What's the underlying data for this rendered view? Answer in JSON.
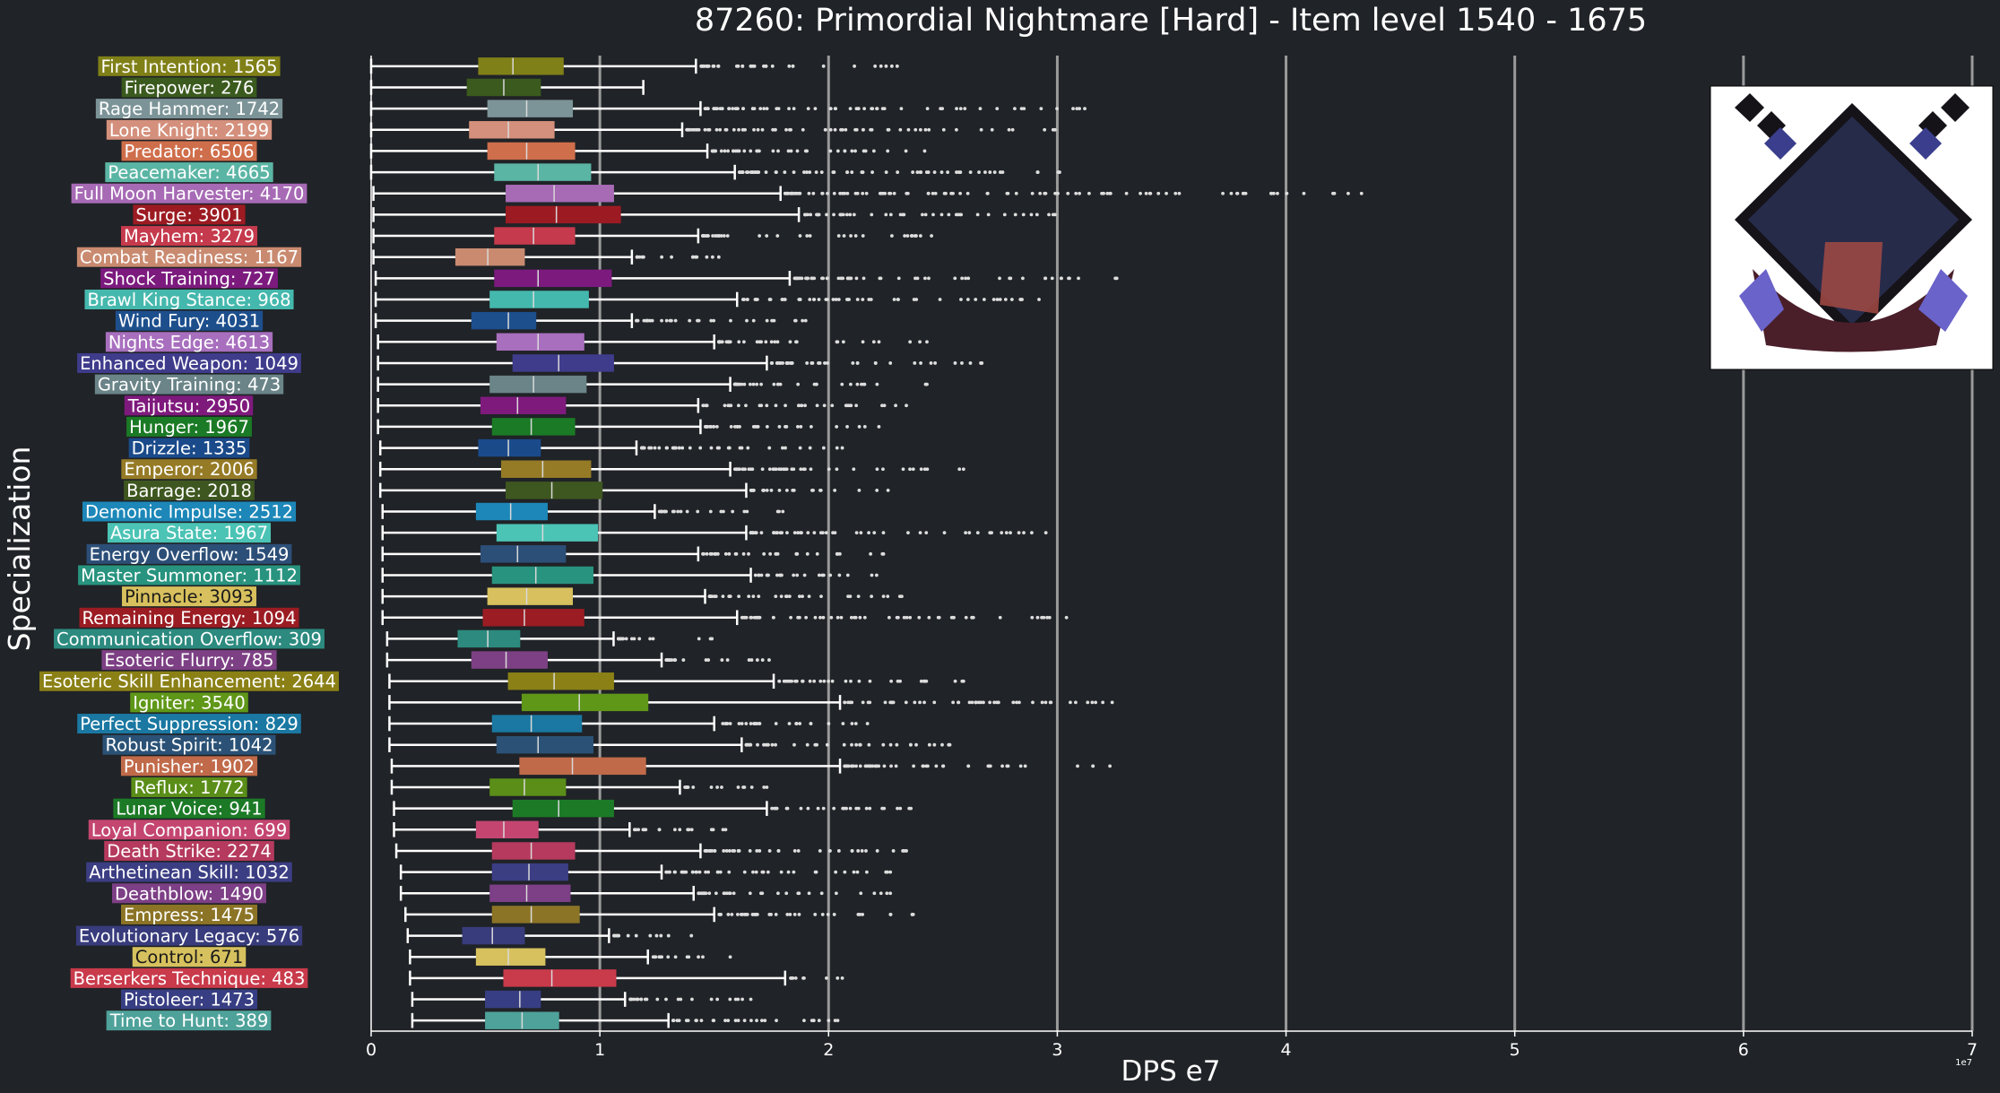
{
  "chart_data": {
    "type": "box",
    "orientation": "horizontal",
    "title": "87260: Primordial Nightmare [Hard] - Item level 1540 - 1675",
    "xlabel": "DPS e7",
    "ylabel": "Specialization",
    "offset_label": "1e7",
    "xlim": [
      0,
      7
    ],
    "xticks": [
      "0",
      "1",
      "2",
      "3",
      "4",
      "5",
      "6",
      "7"
    ],
    "grid": "vertical major lines",
    "thumbnail": "boss-portrait-icon",
    "categories": [
      {
        "label": "First Intention: 1565",
        "color": "#808018",
        "wmin": 0.0,
        "q1": 0.47,
        "med": 0.62,
        "q3": 0.84,
        "wmax": 1.42,
        "fmax": 2.3
      },
      {
        "label": "Firepower: 276",
        "color": "#3b5a1e",
        "wmin": 0.0,
        "q1": 0.42,
        "med": 0.58,
        "q3": 0.74,
        "wmax": 1.19,
        "fmax": 1.19
      },
      {
        "label": "Rage Hammer: 1742",
        "color": "#7c9498",
        "wmin": 0.0,
        "q1": 0.51,
        "med": 0.68,
        "q3": 0.88,
        "wmax": 1.44,
        "fmax": 3.12
      },
      {
        "label": "Lone Knight: 2199",
        "color": "#d4907c",
        "wmin": 0.0,
        "q1": 0.43,
        "med": 0.6,
        "q3": 0.8,
        "wmax": 1.36,
        "fmax": 2.99
      },
      {
        "label": "Predator: 6506",
        "color": "#cf6e4b",
        "wmin": 0.0,
        "q1": 0.51,
        "med": 0.68,
        "q3": 0.89,
        "wmax": 1.47,
        "fmax": 2.42
      },
      {
        "label": "Peacemaker: 4665",
        "color": "#5bb5a4",
        "wmin": 0.0,
        "q1": 0.54,
        "med": 0.73,
        "q3": 0.96,
        "wmax": 1.59,
        "fmax": 3.01
      },
      {
        "label": "Full Moon Harvester: 4170",
        "color": "#a76ab5",
        "wmin": 0.01,
        "q1": 0.59,
        "med": 0.8,
        "q3": 1.06,
        "wmax": 1.79,
        "fmax": 4.33
      },
      {
        "label": "Surge: 3901",
        "color": "#9c1b22",
        "wmin": 0.01,
        "q1": 0.59,
        "med": 0.81,
        "q3": 1.09,
        "wmax": 1.87,
        "fmax": 2.99
      },
      {
        "label": "Mayhem: 3279",
        "color": "#c53a4c",
        "wmin": 0.01,
        "q1": 0.54,
        "med": 0.71,
        "q3": 0.89,
        "wmax": 1.43,
        "fmax": 2.45
      },
      {
        "label": "Combat Readiness: 1167",
        "color": "#c98a70",
        "wmin": 0.01,
        "q1": 0.37,
        "med": 0.51,
        "q3": 0.67,
        "wmax": 1.14,
        "fmax": 1.52
      },
      {
        "label": "Shock Training: 727",
        "color": "#7c1a7e",
        "wmin": 0.02,
        "q1": 0.54,
        "med": 0.73,
        "q3": 1.05,
        "wmax": 1.83,
        "fmax": 3.26
      },
      {
        "label": "Brawl King Stance: 968",
        "color": "#45b8ad",
        "wmin": 0.02,
        "q1": 0.52,
        "med": 0.71,
        "q3": 0.95,
        "wmax": 1.6,
        "fmax": 2.92
      },
      {
        "label": "Wind Fury: 4031",
        "color": "#1d4f8d",
        "wmin": 0.02,
        "q1": 0.44,
        "med": 0.6,
        "q3": 0.72,
        "wmax": 1.14,
        "fmax": 1.9
      },
      {
        "label": "Nights Edge: 4613",
        "color": "#a86fbe",
        "wmin": 0.03,
        "q1": 0.55,
        "med": 0.73,
        "q3": 0.93,
        "wmax": 1.5,
        "fmax": 2.43
      },
      {
        "label": "Enhanced Weapon: 1049",
        "color": "#3f3c8c",
        "wmin": 0.03,
        "q1": 0.62,
        "med": 0.82,
        "q3": 1.06,
        "wmax": 1.73,
        "fmax": 2.67
      },
      {
        "label": "Gravity Training: 473",
        "color": "#6a8488",
        "wmin": 0.03,
        "q1": 0.52,
        "med": 0.71,
        "q3": 0.94,
        "wmax": 1.57,
        "fmax": 2.43
      },
      {
        "label": "Taijutsu: 2950",
        "color": "#7f1a7d",
        "wmin": 0.03,
        "q1": 0.48,
        "med": 0.64,
        "q3": 0.85,
        "wmax": 1.43,
        "fmax": 2.34
      },
      {
        "label": "Hunger: 1967",
        "color": "#1b7a25",
        "wmin": 0.03,
        "q1": 0.53,
        "med": 0.7,
        "q3": 0.89,
        "wmax": 1.44,
        "fmax": 2.22
      },
      {
        "label": "Drizzle: 1335",
        "color": "#1a4a8a",
        "wmin": 0.04,
        "q1": 0.47,
        "med": 0.6,
        "q3": 0.74,
        "wmax": 1.16,
        "fmax": 2.06
      },
      {
        "label": "Emperor: 2006",
        "color": "#967b26",
        "wmin": 0.04,
        "q1": 0.57,
        "med": 0.75,
        "q3": 0.96,
        "wmax": 1.57,
        "fmax": 2.59
      },
      {
        "label": "Barrage: 2018",
        "color": "#3e5720",
        "wmin": 0.04,
        "q1": 0.59,
        "med": 0.79,
        "q3": 1.01,
        "wmax": 1.64,
        "fmax": 2.26
      },
      {
        "label": "Demonic Impulse: 2512",
        "color": "#1c87b8",
        "wmin": 0.05,
        "q1": 0.46,
        "med": 0.61,
        "q3": 0.77,
        "wmax": 1.24,
        "fmax": 1.8
      },
      {
        "label": "Asura State: 1967",
        "color": "#4bc3b5",
        "wmin": 0.05,
        "q1": 0.55,
        "med": 0.75,
        "q3": 0.99,
        "wmax": 1.64,
        "fmax": 2.95
      },
      {
        "label": "Energy Overflow: 1549",
        "color": "#2c4f78",
        "wmin": 0.05,
        "q1": 0.48,
        "med": 0.64,
        "q3": 0.85,
        "wmax": 1.43,
        "fmax": 2.24
      },
      {
        "label": "Master Summoner: 1112",
        "color": "#28937e",
        "wmin": 0.05,
        "q1": 0.53,
        "med": 0.72,
        "q3": 0.97,
        "wmax": 1.66,
        "fmax": 2.21
      },
      {
        "label": "Pinnacle: 3093",
        "color": "#d7c05d",
        "wmin": 0.05,
        "q1": 0.51,
        "med": 0.68,
        "q3": 0.88,
        "wmax": 1.46,
        "fmax": 2.32
      },
      {
        "label": "Remaining Energy: 1094",
        "color": "#9b1c23",
        "wmin": 0.05,
        "q1": 0.49,
        "med": 0.67,
        "q3": 0.93,
        "wmax": 1.6,
        "fmax": 3.04
      },
      {
        "label": "Communication Overflow: 309",
        "color": "#2c8a7f",
        "wmin": 0.07,
        "q1": 0.38,
        "med": 0.51,
        "q3": 0.65,
        "wmax": 1.06,
        "fmax": 1.49
      },
      {
        "label": "Esoteric Flurry: 785",
        "color": "#7d4084",
        "wmin": 0.07,
        "q1": 0.44,
        "med": 0.59,
        "q3": 0.77,
        "wmax": 1.27,
        "fmax": 1.74
      },
      {
        "label": "Esoteric Skill Enhancement: 2644",
        "color": "#8a8016",
        "wmin": 0.08,
        "q1": 0.6,
        "med": 0.8,
        "q3": 1.06,
        "wmax": 1.76,
        "fmax": 2.59
      },
      {
        "label": "Igniter: 3540",
        "color": "#5f9718",
        "wmin": 0.08,
        "q1": 0.66,
        "med": 0.91,
        "q3": 1.21,
        "wmax": 2.05,
        "fmax": 3.24
      },
      {
        "label": "Perfect Suppression: 829",
        "color": "#1a78a2",
        "wmin": 0.08,
        "q1": 0.53,
        "med": 0.7,
        "q3": 0.92,
        "wmax": 1.5,
        "fmax": 2.17
      },
      {
        "label": "Robust Spirit: 1042",
        "color": "#2b5276",
        "wmin": 0.08,
        "q1": 0.55,
        "med": 0.73,
        "q3": 0.97,
        "wmax": 1.62,
        "fmax": 2.53
      },
      {
        "label": "Punisher: 1902",
        "color": "#c06a4a",
        "wmin": 0.09,
        "q1": 0.65,
        "med": 0.88,
        "q3": 1.2,
        "wmax": 2.05,
        "fmax": 3.23
      },
      {
        "label": "Reflux: 1772",
        "color": "#5a8e18",
        "wmin": 0.09,
        "q1": 0.52,
        "med": 0.67,
        "q3": 0.85,
        "wmax": 1.35,
        "fmax": 1.73
      },
      {
        "label": "Lunar Voice: 941",
        "color": "#1c7a26",
        "wmin": 0.1,
        "q1": 0.62,
        "med": 0.82,
        "q3": 1.06,
        "wmax": 1.73,
        "fmax": 2.36
      },
      {
        "label": "Loyal Companion: 699",
        "color": "#c44670",
        "wmin": 0.1,
        "q1": 0.46,
        "med": 0.58,
        "q3": 0.73,
        "wmax": 1.13,
        "fmax": 1.55
      },
      {
        "label": "Death Strike: 2274",
        "color": "#b53a5e",
        "wmin": 0.11,
        "q1": 0.53,
        "med": 0.7,
        "q3": 0.89,
        "wmax": 1.44,
        "fmax": 2.34
      },
      {
        "label": "Arthetinean Skill: 1032",
        "color": "#3b3e83",
        "wmin": 0.13,
        "q1": 0.53,
        "med": 0.69,
        "q3": 0.86,
        "wmax": 1.27,
        "fmax": 2.27
      },
      {
        "label": "Deathblow: 1490",
        "color": "#7d3f86",
        "wmin": 0.13,
        "q1": 0.52,
        "med": 0.68,
        "q3": 0.87,
        "wmax": 1.41,
        "fmax": 2.27
      },
      {
        "label": "Empress: 1475",
        "color": "#8c7426",
        "wmin": 0.15,
        "q1": 0.53,
        "med": 0.7,
        "q3": 0.91,
        "wmax": 1.5,
        "fmax": 2.37
      },
      {
        "label": "Evolutionary Legacy: 576",
        "color": "#383c7c",
        "wmin": 0.16,
        "q1": 0.4,
        "med": 0.53,
        "q3": 0.67,
        "wmax": 1.04,
        "fmax": 1.4
      },
      {
        "label": "Control: 671",
        "color": "#d6c15e",
        "wmin": 0.17,
        "q1": 0.46,
        "med": 0.6,
        "q3": 0.76,
        "wmax": 1.21,
        "fmax": 1.57
      },
      {
        "label": "Berserkers Technique: 483",
        "color": "#c93a4b",
        "wmin": 0.17,
        "q1": 0.58,
        "med": 0.79,
        "q3": 1.07,
        "wmax": 1.81,
        "fmax": 2.06
      },
      {
        "label": "Pistoleer: 1473",
        "color": "#383e83",
        "wmin": 0.18,
        "q1": 0.5,
        "med": 0.65,
        "q3": 0.74,
        "wmax": 1.11,
        "fmax": 1.66
      },
      {
        "label": "Time to Hunt: 389",
        "color": "#4ea29a",
        "wmin": 0.18,
        "q1": 0.5,
        "med": 0.66,
        "q3": 0.82,
        "wmax": 1.3,
        "fmax": 2.04
      }
    ]
  }
}
